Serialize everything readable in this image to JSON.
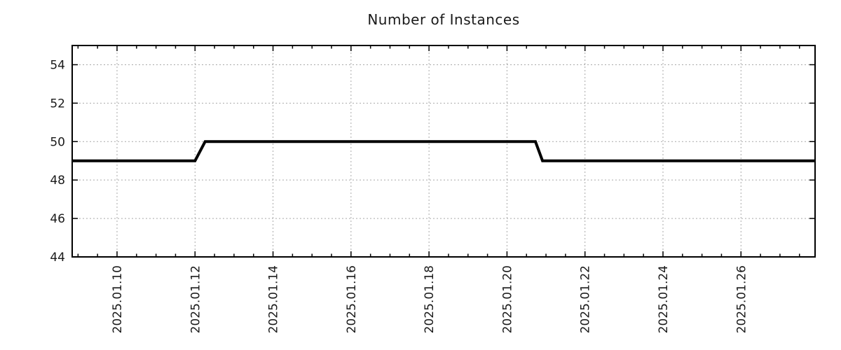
{
  "title": "Number of Instances",
  "colors": {
    "background": "#ffffff",
    "line": "#000000",
    "grid": "#a9a9a9",
    "border": "#000000",
    "text": "#1a1a1a"
  },
  "chart_data": {
    "type": "line",
    "title": "Number of Instances",
    "xlabel": "",
    "ylabel": "",
    "legend": "none",
    "grid": true,
    "x_axis_description": "dates in January 2025, day-of-month as fractional days",
    "xlim_days": [
      8.85,
      27.9
    ],
    "ylim": [
      44,
      55
    ],
    "y_ticks": [
      44,
      46,
      48,
      50,
      52,
      54
    ],
    "x_ticks": [
      {
        "day": 10,
        "label": "2025.01.10"
      },
      {
        "day": 12,
        "label": "2025.01.12"
      },
      {
        "day": 14,
        "label": "2025.01.14"
      },
      {
        "day": 16,
        "label": "2025.01.16"
      },
      {
        "day": 18,
        "label": "2025.01.18"
      },
      {
        "day": 20,
        "label": "2025.01.20"
      },
      {
        "day": 22,
        "label": "2025.01.22"
      },
      {
        "day": 24,
        "label": "2025.01.24"
      },
      {
        "day": 26,
        "label": "2025.01.26"
      }
    ],
    "x_minor_tick_interval_days": 0.5,
    "series": [
      {
        "name": "Number of Instances",
        "color": "#000000",
        "line_width": 4,
        "points_day_value": [
          [
            8.85,
            49
          ],
          [
            12.0,
            49
          ],
          [
            12.26,
            50
          ],
          [
            20.73,
            50
          ],
          [
            20.91,
            49
          ],
          [
            27.9,
            49
          ]
        ],
        "description": "Step line: 49 instances until 2025-01-12, rises to 50 at 2025-01-12, holds 50 until late 2025-01-20, drops back to 49 and stays 49 through the right edge"
      }
    ]
  }
}
